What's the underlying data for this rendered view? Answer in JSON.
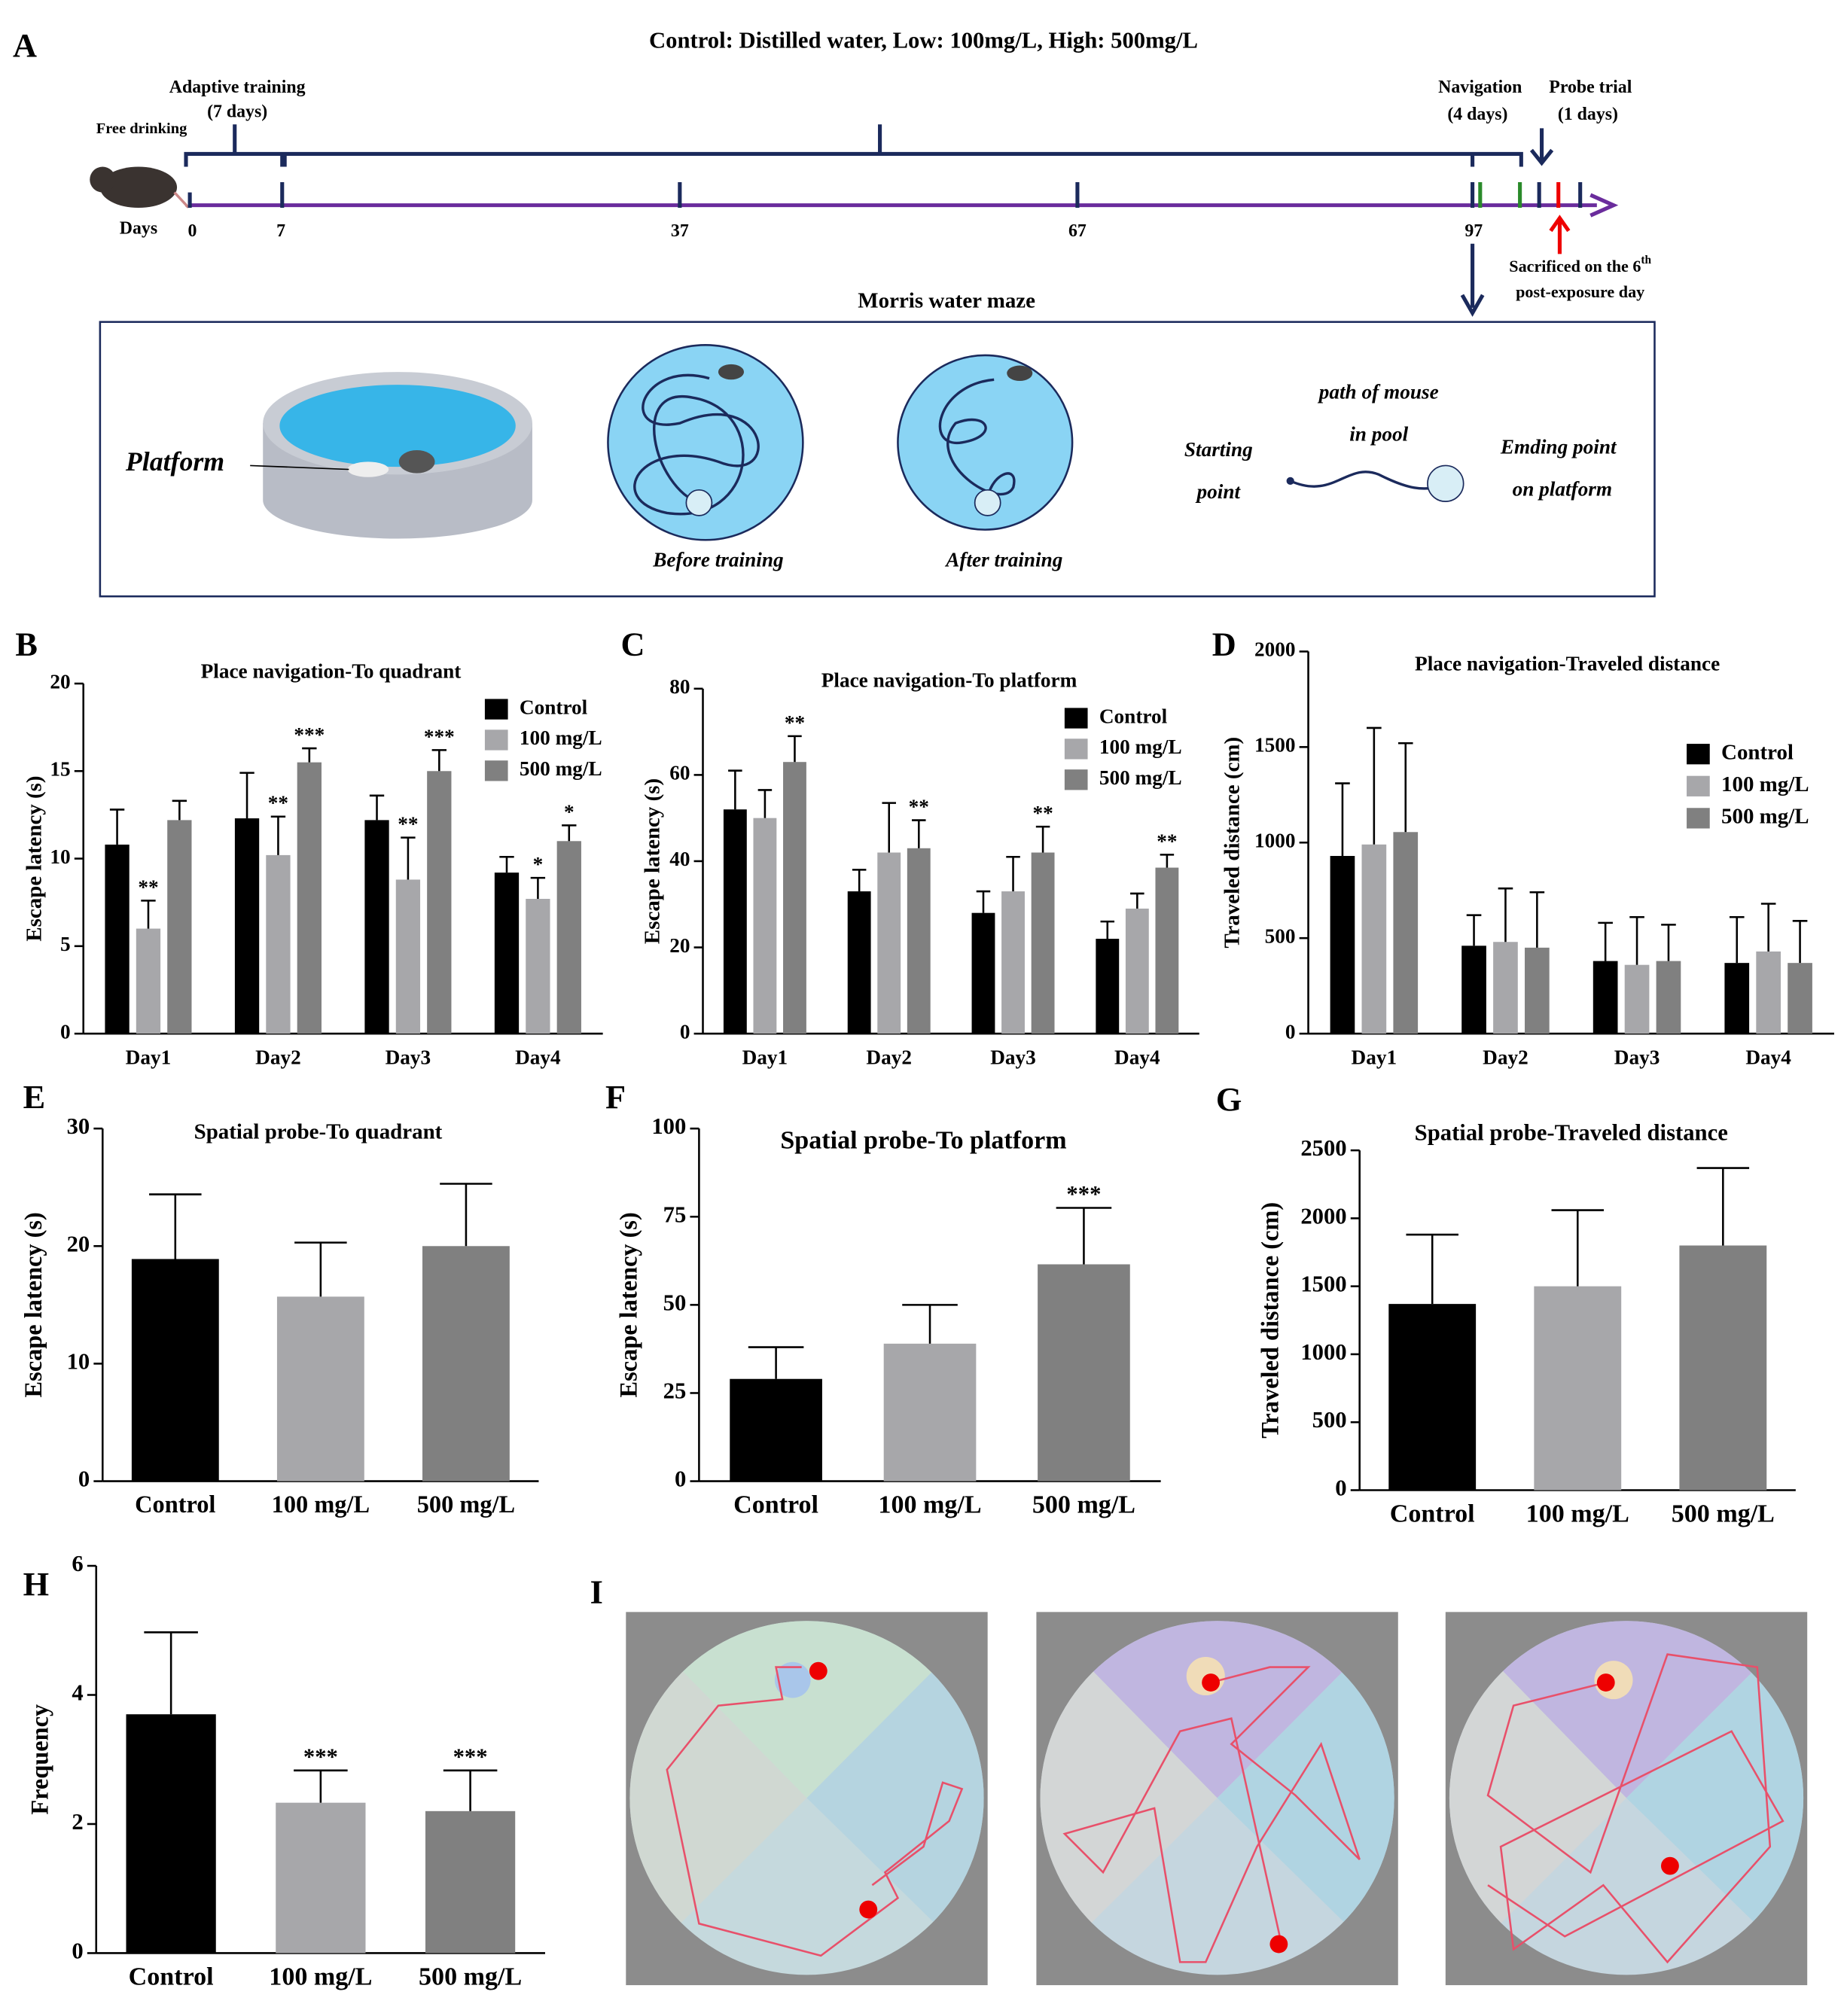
{
  "panel_a": {
    "label": "A",
    "header": "Control: Distilled water,  Low: 100mg/L,  High: 500mg/L",
    "free_drinking": "Free drinking",
    "adaptive": "Adaptive training",
    "adaptive_days": "(7 days)",
    "navigation": "Navigation",
    "navigation_days": "(4 days)",
    "probe": "Probe trial",
    "probe_days": "(1 days)",
    "days": "Days",
    "day_ticks": [
      "0",
      "7",
      "37",
      "67",
      "97"
    ],
    "sacrificed": "Sacrificed on the 6",
    "sacrificed_sup": "th",
    "sacrificed_2": "post-exposure day",
    "maze_title": "Morris water maze",
    "platform": "Platform",
    "before": "Before training",
    "after": "After training",
    "starting": "Starting",
    "point": "point",
    "path_1": "path of mouse",
    "path_2": "in pool",
    "ending_1": "Emding point",
    "ending_2": "on platform"
  },
  "panel_i": {
    "label": "I"
  },
  "chart_data": [
    {
      "type": "bar",
      "label": "B",
      "title": "Place navigation-To quadrant",
      "ylabel": "Escape latency (s)",
      "categories": [
        "Day1",
        "Day2",
        "Day3",
        "Day4"
      ],
      "legend": true,
      "series": [
        {
          "name": "Control",
          "color": "#000000",
          "values": [
            10.8,
            12.3,
            12.2,
            9.2
          ],
          "errors": [
            2.0,
            2.6,
            1.4,
            0.9
          ],
          "annotations": [
            null,
            null,
            null,
            null
          ]
        },
        {
          "name": "100 mg/L",
          "color": "#a7a7aa",
          "values": [
            6.0,
            10.2,
            8.8,
            7.7
          ],
          "errors": [
            1.6,
            2.2,
            2.4,
            1.2
          ],
          "annotations": [
            "**",
            "**",
            "**",
            "*"
          ]
        },
        {
          "name": "500 mg/L",
          "color": "#808080",
          "values": [
            12.2,
            15.5,
            15.0,
            11.0
          ],
          "errors": [
            1.1,
            0.8,
            1.2,
            0.9
          ],
          "annotations": [
            null,
            "***",
            "***",
            "*"
          ]
        }
      ],
      "ylim": [
        0,
        20
      ],
      "yticks": [
        0,
        5,
        10,
        15,
        20
      ]
    },
    {
      "type": "bar",
      "label": "C",
      "title": "Place navigation-To platform",
      "ylabel": "Escape latency (s)",
      "categories": [
        "Day1",
        "Day2",
        "Day3",
        "Day4"
      ],
      "legend": true,
      "series": [
        {
          "name": "Control",
          "color": "#000000",
          "values": [
            52,
            33,
            28,
            22
          ],
          "errors": [
            9,
            5,
            5,
            4
          ],
          "annotations": [
            null,
            null,
            null,
            null
          ]
        },
        {
          "name": "100 mg/L",
          "color": "#a7a7aa",
          "values": [
            50,
            42,
            33,
            29
          ],
          "errors": [
            6.5,
            11.5,
            8,
            3.5
          ],
          "annotations": [
            null,
            null,
            null,
            null
          ]
        },
        {
          "name": "500 mg/L",
          "color": "#808080",
          "values": [
            63,
            43,
            42,
            38.5
          ],
          "errors": [
            6,
            6.5,
            6,
            3
          ],
          "annotations": [
            "**",
            "**",
            "**",
            "**"
          ]
        }
      ],
      "ylim": [
        0,
        80
      ],
      "yticks": [
        0,
        20,
        40,
        60,
        80
      ]
    },
    {
      "type": "bar",
      "label": "D",
      "title": "Place navigation-Traveled distance",
      "ylabel": "Traveled distance (cm)",
      "categories": [
        "Day1",
        "Day2",
        "Day3",
        "Day4"
      ],
      "legend": true,
      "series": [
        {
          "name": "Control",
          "color": "#000000",
          "values": [
            930,
            460,
            380,
            370
          ],
          "errors": [
            380,
            160,
            200,
            240
          ],
          "annotations": [
            null,
            null,
            null,
            null
          ]
        },
        {
          "name": "100 mg/L",
          "color": "#a7a7aa",
          "values": [
            990,
            480,
            360,
            430
          ],
          "errors": [
            610,
            280,
            250,
            250
          ],
          "annotations": [
            null,
            null,
            null,
            null
          ]
        },
        {
          "name": "500 mg/L",
          "color": "#808080",
          "values": [
            1055,
            450,
            380,
            370
          ],
          "errors": [
            465,
            290,
            190,
            220
          ],
          "annotations": [
            null,
            null,
            null,
            null
          ]
        }
      ],
      "ylim": [
        0,
        2000
      ],
      "yticks": [
        0,
        500,
        1000,
        1500,
        2000
      ]
    },
    {
      "type": "bar",
      "label": "E",
      "title": "Spatial probe-To quadrant",
      "ylabel": "Escape latency (s)",
      "categories": [
        "Control",
        "100 mg/L",
        "500 mg/L"
      ],
      "colors": [
        "#000000",
        "#a7a7aa",
        "#808080"
      ],
      "values": [
        18.9,
        15.7,
        20.0
      ],
      "errors": [
        5.5,
        4.6,
        5.3
      ],
      "annotations": [
        null,
        null,
        null
      ],
      "ylim": [
        0,
        30
      ],
      "yticks": [
        0,
        10,
        20,
        30
      ]
    },
    {
      "type": "bar",
      "label": "F",
      "title": "Spatial probe-To platform",
      "ylabel": "Escape latency (s)",
      "categories": [
        "Control",
        "100 mg/L",
        "500 mg/L"
      ],
      "colors": [
        "#000000",
        "#a7a7aa",
        "#808080"
      ],
      "values": [
        29,
        39,
        61.5
      ],
      "errors": [
        9,
        11,
        16
      ],
      "annotations": [
        null,
        null,
        "***"
      ],
      "ylim": [
        0,
        100
      ],
      "yticks": [
        0,
        25,
        50,
        75,
        100
      ]
    },
    {
      "type": "bar",
      "label": "G",
      "title": "Spatial probe-Traveled distance",
      "ylabel": "Traveled distance (cm)",
      "categories": [
        "Control",
        "100 mg/L",
        "500 mg/L"
      ],
      "colors": [
        "#000000",
        "#a7a7aa",
        "#808080"
      ],
      "values": [
        1370,
        1500,
        1800
      ],
      "errors": [
        510,
        560,
        570
      ],
      "annotations": [
        null,
        null,
        null
      ],
      "ylim": [
        0,
        2500
      ],
      "yticks": [
        0,
        500,
        1000,
        1500,
        2000,
        2500
      ]
    },
    {
      "type": "bar",
      "label": "H",
      "ylabel": "Frequency",
      "categories": [
        "Control",
        "100 mg/L",
        "500 mg/L"
      ],
      "colors": [
        "#000000",
        "#a7a7aa",
        "#808080"
      ],
      "values": [
        3.7,
        2.33,
        2.2
      ],
      "errors": [
        1.27,
        0.5,
        0.63
      ],
      "annotations": [
        null,
        "***",
        "***"
      ],
      "ylim": [
        0,
        6
      ],
      "yticks": [
        0,
        2,
        4,
        6
      ]
    }
  ]
}
